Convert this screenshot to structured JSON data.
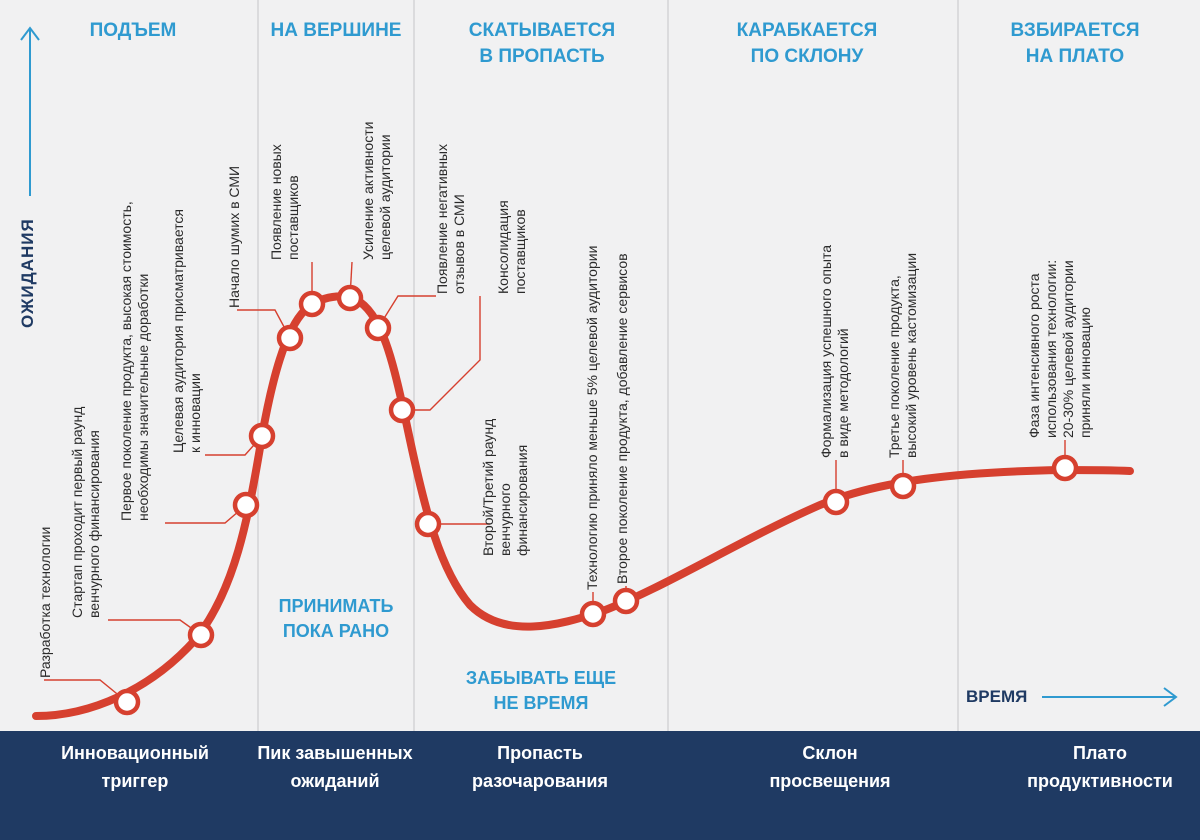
{
  "colors": {
    "curve": "#d6402f",
    "accent": "#2f9ad0",
    "footer": "#1f3a63",
    "background": "#f1f1f2"
  },
  "axes": {
    "y_label": "ОЖИДАНИЯ",
    "x_label": "ВРЕМЯ"
  },
  "phases": [
    "ПОДЪЕМ",
    "НА ВЕРШИНЕ",
    "СКАТЫВАЕТСЯ\nВ ПРОПАСТЬ",
    "КАРАБКАЕТСЯ\nПО СКЛОНУ",
    "ВЗБИРАЕТСЯ\nНА ПЛАТО"
  ],
  "advice": [
    "ПРИНИМАТЬ\nПОКА РАНО",
    "ЗАБЫВАТЬ ЕЩЕ\nНЕ ВРЕМЯ"
  ],
  "stages": [
    "Инновационный\nтриггер",
    "Пик завышенных\nожиданий",
    "Пропасть\nразочарования",
    "Склон\nпросвещения",
    "Плато\nпродуктивности"
  ],
  "annotations": [
    "Разработка технологии",
    "Стартап проходит первый раунд\nвенчурного финансирования",
    "Первое поколение продукта, высокая стоимость,\nнеобходимы значительные доработки",
    "Целевая аудитория присматривается\nк инновации",
    "Начало шумих в СМИ",
    "Появление новых\nпоставщиков",
    "Усиление активности\nцелевой аудитории",
    "Появление негативных\nотзывов в СМИ",
    "Консолидация\nпоставщиков",
    "Второй/Третий раунд\nвенчурного\nфинансирования",
    "Технологию приняло меньше 5% целевой аудитории",
    "Второе поколение продукта, добавление сервисов",
    "Формализация успешного опыта\nв виде методологий",
    "Третье поколение продукта,\nвысокий уровень кастомизации",
    "Фаза интенсивного роста\nиспользования технологии:\n20-30% целевой аудитории\nприняли инновацию"
  ]
}
